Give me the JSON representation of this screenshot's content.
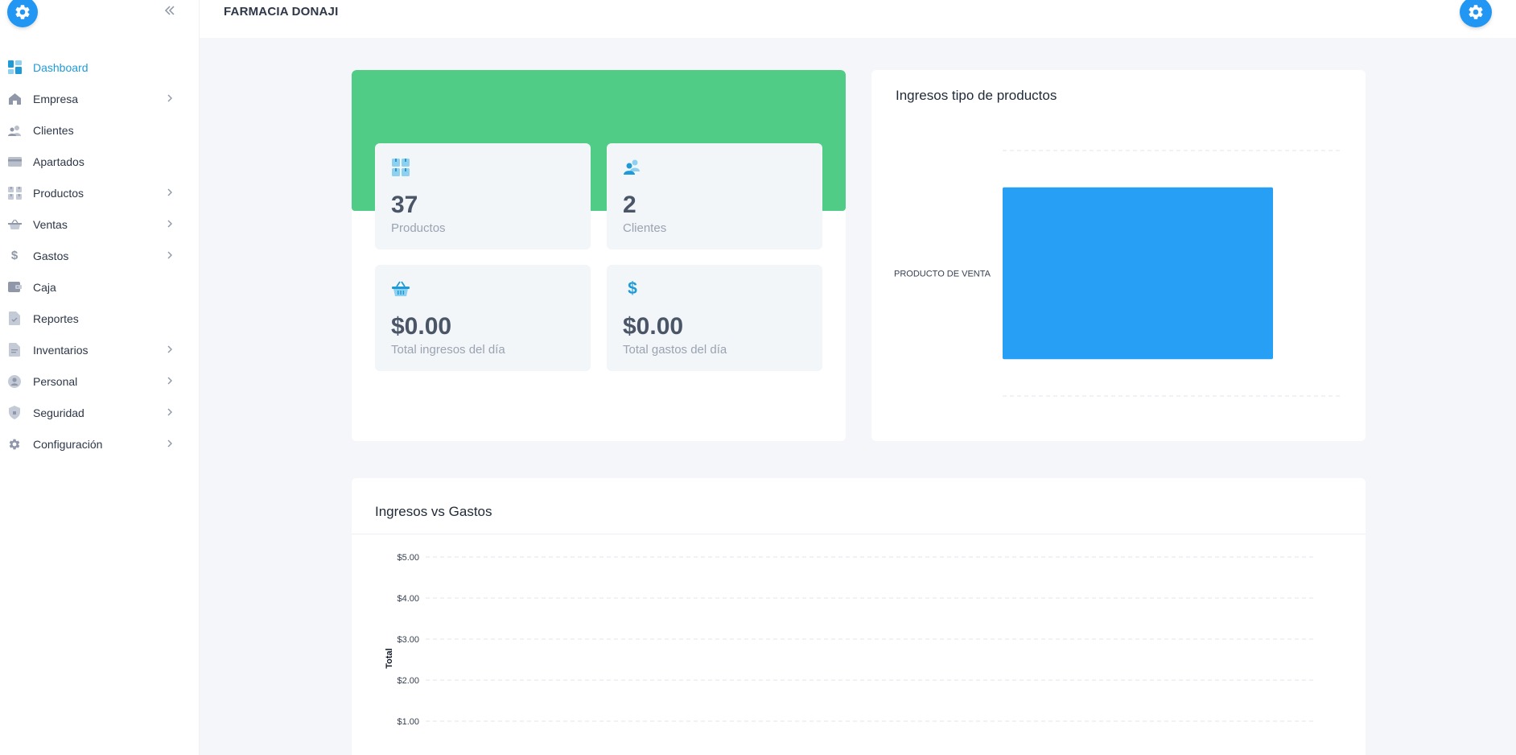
{
  "sidebar": {
    "items": [
      {
        "label": "Dashboard",
        "icon": "dashboard-icon",
        "active": true,
        "has_submenu": false
      },
      {
        "label": "Empresa",
        "icon": "home-icon",
        "active": false,
        "has_submenu": true
      },
      {
        "label": "Clientes",
        "icon": "users-icon",
        "active": false,
        "has_submenu": false
      },
      {
        "label": "Apartados",
        "icon": "card-icon",
        "active": false,
        "has_submenu": false
      },
      {
        "label": "Productos",
        "icon": "boxes-icon",
        "active": false,
        "has_submenu": true
      },
      {
        "label": "Ventas",
        "icon": "basket-icon",
        "active": false,
        "has_submenu": true
      },
      {
        "label": "Gastos",
        "icon": "dollar-icon",
        "active": false,
        "has_submenu": true
      },
      {
        "label": "Caja",
        "icon": "wallet-icon",
        "active": false,
        "has_submenu": false
      },
      {
        "label": "Reportes",
        "icon": "report-icon",
        "active": false,
        "has_submenu": false
      },
      {
        "label": "Inventarios",
        "icon": "document-icon",
        "active": false,
        "has_submenu": true
      },
      {
        "label": "Personal",
        "icon": "person-icon",
        "active": false,
        "has_submenu": true
      },
      {
        "label": "Seguridad",
        "icon": "shield-icon",
        "active": false,
        "has_submenu": true
      },
      {
        "label": "Configuración",
        "icon": "gear-icon",
        "active": false,
        "has_submenu": true
      }
    ]
  },
  "header": {
    "brand": "FARMACIA DONAJI"
  },
  "stats": {
    "productos": {
      "value": "37",
      "label": "Productos"
    },
    "clientes": {
      "value": "2",
      "label": "Clientes"
    },
    "ingresos": {
      "value": "$0.00",
      "label": "Total ingresos del día"
    },
    "gastos": {
      "value": "$0.00",
      "label": "Total gastos del día"
    }
  },
  "colors": {
    "accent": "#1e9bd7",
    "green": "#51cc87",
    "bar": "#279ff5",
    "brand_blue": "#2196f3"
  },
  "chart_data": [
    {
      "type": "bar",
      "orientation": "horizontal",
      "title": "Ingresos tipo de productos",
      "categories": [
        "PRODUCTO DE VENTA"
      ],
      "values": [
        1
      ],
      "grid": true
    },
    {
      "type": "line",
      "title": "Ingresos vs Gastos",
      "ylabel": "Total",
      "yticks": [
        "$1.00",
        "$2.00",
        "$3.00",
        "$4.00",
        "$5.00"
      ],
      "ylim": [
        0,
        5
      ],
      "grid": true
    }
  ]
}
